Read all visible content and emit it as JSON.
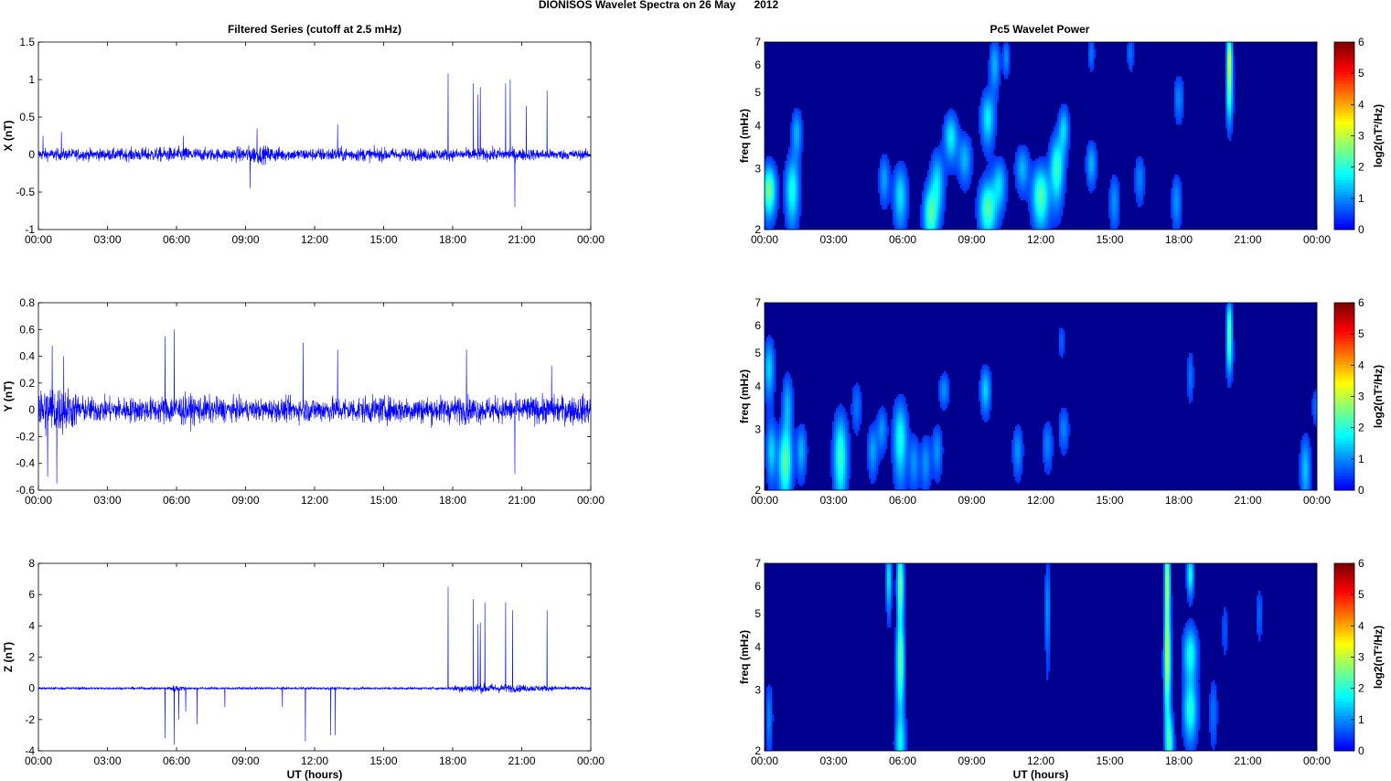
{
  "figure": {
    "suptitle": "DIONISOS Wavelet Spectra on 26 May      2012",
    "left_title": "Filtered Series (cutoff at 2.5 mHz)",
    "right_title": "Pc5 Wavelet Power",
    "xlabel": "UT (hours)"
  },
  "colors": {
    "trace": "#0000ff",
    "background": "#00008f"
  },
  "chart_data": [
    {
      "type": "line",
      "id": "x",
      "ylabel": "X (nT)",
      "xlabel": "",
      "xticks": [
        "00:00",
        "03:00",
        "06:00",
        "09:00",
        "12:00",
        "15:00",
        "18:00",
        "21:00",
        "00:00"
      ],
      "xlim": [
        0,
        24
      ],
      "ylim": [
        -1,
        1.5
      ],
      "yticks": [
        "-1",
        "-0.5",
        "0",
        "0.5",
        "1",
        "1.5"
      ],
      "ytick_values": [
        -1,
        -0.5,
        0,
        0.5,
        1,
        1.5
      ],
      "noise_profile": [
        [
          0,
          0.1
        ],
        [
          3,
          0.1
        ],
        [
          6,
          0.13
        ],
        [
          8,
          0.1
        ],
        [
          9.5,
          0.16
        ],
        [
          11,
          0.1
        ],
        [
          13,
          0.12
        ],
        [
          18,
          0.1
        ],
        [
          20,
          0.11
        ],
        [
          24,
          0.08
        ]
      ],
      "spikes": [
        [
          0.2,
          0.25
        ],
        [
          1.0,
          0.3
        ],
        [
          6.3,
          0.25
        ],
        [
          9.2,
          -0.45
        ],
        [
          9.5,
          0.35
        ],
        [
          13.0,
          0.4
        ],
        [
          17.8,
          1.08
        ],
        [
          18.9,
          0.95
        ],
        [
          19.1,
          0.8
        ],
        [
          19.2,
          0.9
        ],
        [
          20.3,
          0.95
        ],
        [
          20.5,
          1.0
        ],
        [
          20.7,
          -0.7
        ],
        [
          21.2,
          0.65
        ],
        [
          22.1,
          0.85
        ]
      ]
    },
    {
      "type": "line",
      "id": "y",
      "ylabel": "Y (nT)",
      "xlabel": "",
      "xticks": [
        "00:00",
        "03:00",
        "06:00",
        "09:00",
        "12:00",
        "15:00",
        "18:00",
        "21:00",
        "00:00"
      ],
      "xlim": [
        0,
        24
      ],
      "ylim": [
        -0.6,
        0.8
      ],
      "yticks": [
        "-0.6",
        "-0.4",
        "-0.2",
        "0",
        "0.2",
        "0.4",
        "0.6",
        "0.8"
      ],
      "ytick_values": [
        -0.6,
        -0.4,
        -0.2,
        0,
        0.2,
        0.4,
        0.6,
        0.8
      ],
      "noise_profile": [
        [
          0,
          0.25
        ],
        [
          1.2,
          0.22
        ],
        [
          2,
          0.12
        ],
        [
          5,
          0.12
        ],
        [
          6,
          0.15
        ],
        [
          9,
          0.1
        ],
        [
          12,
          0.12
        ],
        [
          18,
          0.13
        ],
        [
          20,
          0.12
        ],
        [
          24,
          0.14
        ]
      ],
      "spikes": [
        [
          0.4,
          -0.5
        ],
        [
          0.6,
          0.48
        ],
        [
          0.8,
          -0.55
        ],
        [
          1.1,
          0.4
        ],
        [
          5.5,
          0.55
        ],
        [
          5.9,
          0.6
        ],
        [
          11.5,
          0.5
        ],
        [
          13.0,
          0.45
        ],
        [
          18.6,
          0.45
        ],
        [
          20.7,
          -0.48
        ],
        [
          22.3,
          0.33
        ]
      ]
    },
    {
      "type": "line",
      "id": "z",
      "ylabel": "Z (nT)",
      "xlabel": "UT (hours)",
      "xticks": [
        "00:00",
        "03:00",
        "06:00",
        "09:00",
        "12:00",
        "15:00",
        "18:00",
        "21:00",
        "00:00"
      ],
      "xlim": [
        0,
        24
      ],
      "ylim": [
        -4,
        8
      ],
      "yticks": [
        "-4",
        "-2",
        "0",
        "2",
        "4",
        "6",
        "8"
      ],
      "ytick_values": [
        -4,
        -2,
        0,
        2,
        4,
        6,
        8
      ],
      "noise_profile": [
        [
          0,
          0.1
        ],
        [
          5.5,
          0.1
        ],
        [
          6,
          0.3
        ],
        [
          6.5,
          0.1
        ],
        [
          17.8,
          0.1
        ],
        [
          18.2,
          0.3
        ],
        [
          19.5,
          0.4
        ],
        [
          21,
          0.3
        ],
        [
          24,
          0.12
        ]
      ],
      "spikes": [
        [
          5.5,
          -3.2
        ],
        [
          5.9,
          -3.6
        ],
        [
          6.1,
          -2.0
        ],
        [
          6.4,
          -1.5
        ],
        [
          6.9,
          -2.3
        ],
        [
          8.1,
          -1.2
        ],
        [
          10.6,
          -1.2
        ],
        [
          11.6,
          -3.4
        ],
        [
          12.7,
          -3.0
        ],
        [
          12.9,
          -3.0
        ],
        [
          17.8,
          6.5
        ],
        [
          18.9,
          5.7
        ],
        [
          19.1,
          4.1
        ],
        [
          19.2,
          4.2
        ],
        [
          19.4,
          5.5
        ],
        [
          20.3,
          5.5
        ],
        [
          20.6,
          5.0
        ],
        [
          22.1,
          5.0
        ]
      ]
    },
    {
      "type": "heatmap",
      "id": "x-power",
      "ylabel": "freq (mHz)",
      "xlabel": "",
      "xticks": [
        "00:00",
        "03:00",
        "06:00",
        "09:00",
        "12:00",
        "15:00",
        "18:00",
        "21:00",
        "00:00"
      ],
      "xlim": [
        0,
        24
      ],
      "ylim": [
        2,
        7
      ],
      "yscale": "log",
      "yticks": [
        "2",
        "3",
        "4",
        "5",
        "6",
        "7"
      ],
      "ytick_values": [
        2,
        3,
        4,
        5,
        6,
        7
      ],
      "colorbar": {
        "label": "log2(nT²/Hz)",
        "ticks": [
          "0",
          "1",
          "2",
          "3",
          "4",
          "5",
          "6"
        ],
        "range": [
          0,
          6
        ],
        "colormap": "jet"
      },
      "blobs": [
        [
          0.2,
          2.6,
          0.2,
          0.3,
          2.2
        ],
        [
          1.2,
          2.6,
          0.2,
          0.4,
          1.6
        ],
        [
          1.4,
          3.8,
          0.15,
          0.4,
          1.0
        ],
        [
          5.2,
          2.8,
          0.15,
          0.3,
          0.9
        ],
        [
          5.9,
          2.5,
          0.2,
          0.35,
          1.3
        ],
        [
          7.2,
          2.2,
          0.2,
          0.3,
          1.8
        ],
        [
          7.5,
          2.7,
          0.2,
          0.4,
          1.3
        ],
        [
          8.1,
          3.7,
          0.2,
          0.4,
          1.4
        ],
        [
          8.7,
          3.2,
          0.2,
          0.35,
          1.0
        ],
        [
          9.7,
          2.3,
          0.25,
          0.3,
          2.0
        ],
        [
          9.7,
          4.2,
          0.2,
          0.5,
          1.4
        ],
        [
          10.2,
          2.7,
          0.2,
          0.3,
          1.2
        ],
        [
          10.0,
          6.0,
          0.15,
          0.7,
          1.0
        ],
        [
          10.5,
          6.3,
          0.1,
          0.5,
          0.8
        ],
        [
          11.2,
          3.0,
          0.2,
          0.3,
          1.0
        ],
        [
          12.0,
          2.5,
          0.25,
          0.35,
          2.0
        ],
        [
          12.7,
          3.0,
          0.2,
          0.45,
          1.8
        ],
        [
          13.0,
          3.9,
          0.15,
          0.4,
          1.2
        ],
        [
          14.2,
          3.1,
          0.15,
          0.3,
          1.0
        ],
        [
          15.2,
          2.4,
          0.15,
          0.3,
          0.8
        ],
        [
          16.3,
          2.8,
          0.15,
          0.3,
          0.7
        ],
        [
          17.9,
          2.4,
          0.15,
          0.3,
          0.8
        ],
        [
          18.0,
          4.8,
          0.15,
          0.5,
          0.7
        ],
        [
          20.2,
          6.2,
          0.08,
          0.8,
          2.8
        ],
        [
          20.2,
          4.8,
          0.1,
          0.6,
          1.3
        ],
        [
          14.2,
          6.5,
          0.1,
          0.5,
          0.6
        ],
        [
          15.9,
          6.5,
          0.1,
          0.5,
          0.6
        ]
      ]
    },
    {
      "type": "heatmap",
      "id": "y-power",
      "ylabel": "freq (mHz)",
      "xlabel": "",
      "xticks": [
        "00:00",
        "03:00",
        "06:00",
        "09:00",
        "12:00",
        "15:00",
        "18:00",
        "21:00",
        "00:00"
      ],
      "xlim": [
        0,
        24
      ],
      "ylim": [
        2,
        7
      ],
      "yscale": "log",
      "yticks": [
        "2",
        "3",
        "4",
        "5",
        "6",
        "7"
      ],
      "ytick_values": [
        2,
        3,
        4,
        5,
        6,
        7
      ],
      "colorbar": {
        "label": "log2(nT²/Hz)",
        "ticks": [
          "0",
          "1",
          "2",
          "3",
          "4",
          "5",
          "6"
        ],
        "range": [
          0,
          6
        ],
        "colormap": "jet"
      },
      "blobs": [
        [
          0.2,
          4.5,
          0.15,
          0.6,
          1.2
        ],
        [
          0.3,
          2.6,
          0.15,
          0.35,
          1.2
        ],
        [
          0.9,
          2.4,
          0.2,
          0.4,
          2.0
        ],
        [
          1.0,
          3.5,
          0.15,
          0.5,
          1.0
        ],
        [
          1.6,
          2.6,
          0.15,
          0.3,
          1.0
        ],
        [
          3.3,
          2.5,
          0.2,
          0.5,
          1.8
        ],
        [
          4.7,
          2.6,
          0.15,
          0.3,
          0.9
        ],
        [
          5.1,
          3.0,
          0.15,
          0.3,
          0.8
        ],
        [
          5.9,
          2.8,
          0.2,
          0.5,
          1.6
        ],
        [
          6.5,
          2.4,
          0.15,
          0.3,
          0.8
        ],
        [
          7.0,
          2.4,
          0.15,
          0.3,
          0.8
        ],
        [
          7.5,
          2.6,
          0.15,
          0.3,
          0.8
        ],
        [
          7.8,
          3.9,
          0.15,
          0.3,
          0.8
        ],
        [
          9.6,
          3.9,
          0.15,
          0.4,
          1.2
        ],
        [
          11.0,
          2.6,
          0.15,
          0.3,
          0.8
        ],
        [
          12.3,
          2.7,
          0.15,
          0.3,
          0.7
        ],
        [
          13.0,
          3.0,
          0.15,
          0.3,
          0.7
        ],
        [
          20.2,
          6.0,
          0.08,
          0.7,
          2.0
        ],
        [
          20.2,
          4.9,
          0.1,
          0.5,
          1.0
        ],
        [
          18.5,
          4.3,
          0.1,
          0.5,
          0.6
        ],
        [
          23.5,
          2.3,
          0.15,
          0.35,
          1.1
        ],
        [
          24.0,
          3.5,
          0.15,
          0.3,
          0.6
        ],
        [
          4.0,
          3.5,
          0.15,
          0.4,
          0.6
        ],
        [
          12.9,
          5.4,
          0.1,
          0.4,
          0.5
        ]
      ]
    },
    {
      "type": "heatmap",
      "id": "z-power",
      "ylabel": "freq (mHz)",
      "xlabel": "UT (hours)",
      "xticks": [
        "00:00",
        "03:00",
        "06:00",
        "09:00",
        "12:00",
        "15:00",
        "18:00",
        "21:00",
        "00:00"
      ],
      "xlim": [
        0,
        24
      ],
      "ylim": [
        2,
        7
      ],
      "yscale": "log",
      "yticks": [
        "2",
        "3",
        "4",
        "5",
        "6",
        "7"
      ],
      "ytick_values": [
        2,
        3,
        4,
        5,
        6,
        7
      ],
      "colorbar": {
        "label": "log2(nT²/Hz)",
        "ticks": [
          "0",
          "1",
          "2",
          "3",
          "4",
          "5",
          "6"
        ],
        "range": [
          0,
          6
        ],
        "colormap": "jet"
      },
      "blobs": [
        [
          5.4,
          6.3,
          0.08,
          0.9,
          1.4
        ],
        [
          5.9,
          6.0,
          0.1,
          1.2,
          2.2
        ],
        [
          5.9,
          3.8,
          0.12,
          0.5,
          1.6
        ],
        [
          5.9,
          2.1,
          0.15,
          0.3,
          1.4
        ],
        [
          5.9,
          3.0,
          0.12,
          0.4,
          1.1
        ],
        [
          17.5,
          6.0,
          0.08,
          1.5,
          2.6
        ],
        [
          17.5,
          3.5,
          0.1,
          0.8,
          2.0
        ],
        [
          17.6,
          2.1,
          0.12,
          0.3,
          1.6
        ],
        [
          18.5,
          3.8,
          0.2,
          0.5,
          1.6
        ],
        [
          18.5,
          2.6,
          0.2,
          0.35,
          1.6
        ],
        [
          18.5,
          6.5,
          0.1,
          0.6,
          1.6
        ],
        [
          0.2,
          2.5,
          0.1,
          0.4,
          0.7
        ],
        [
          12.3,
          5.2,
          0.08,
          1.2,
          0.8
        ],
        [
          19.5,
          2.6,
          0.12,
          0.4,
          0.6
        ],
        [
          21.5,
          5.0,
          0.1,
          0.6,
          0.5
        ],
        [
          20.0,
          4.5,
          0.1,
          0.6,
          0.4
        ]
      ]
    }
  ]
}
